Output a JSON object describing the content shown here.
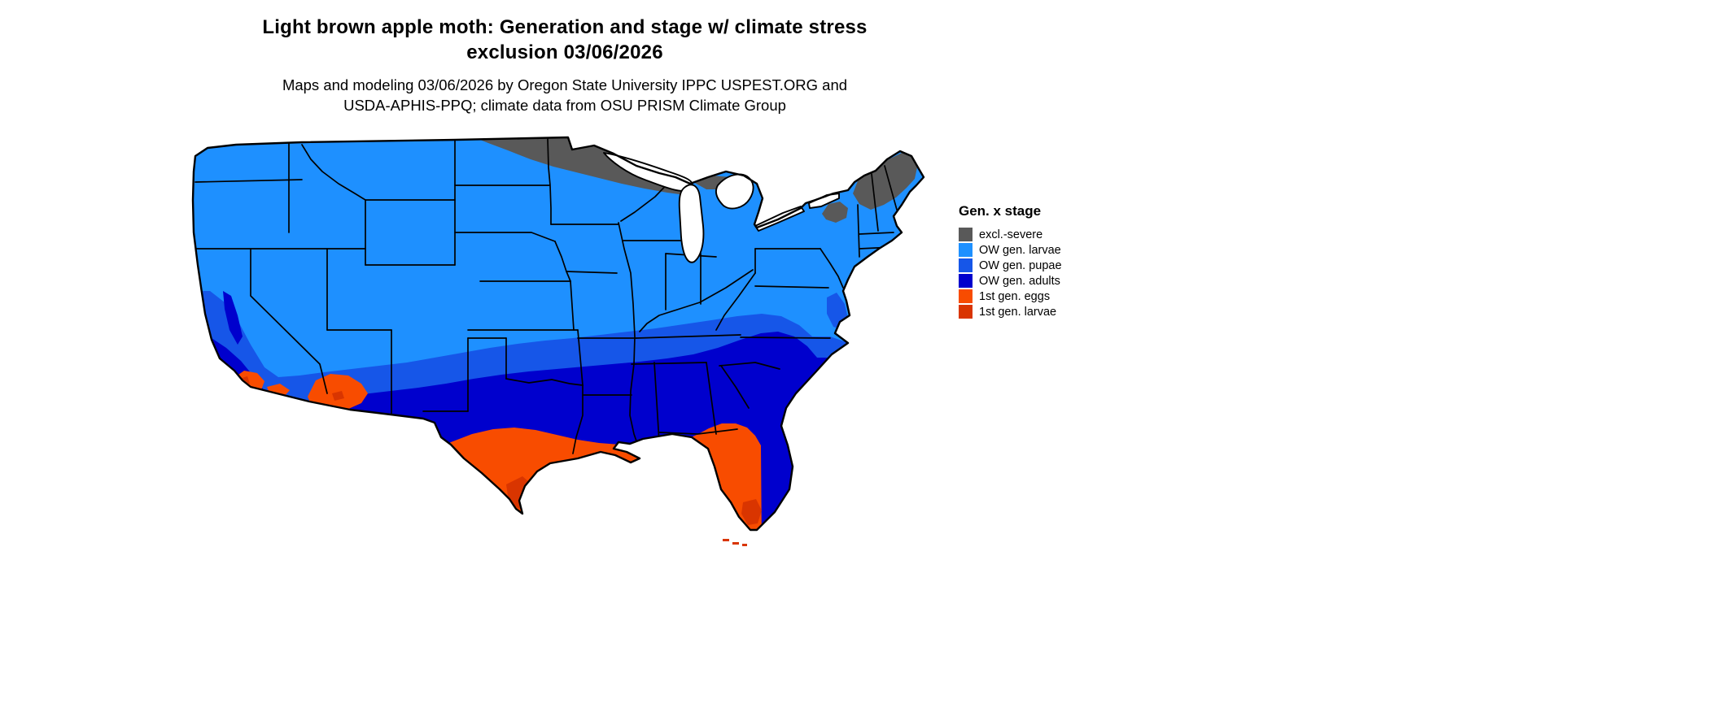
{
  "title": {
    "line1": "Light brown apple moth: Generation and stage w/ climate stress",
    "line2": "exclusion 03/06/2026"
  },
  "subtitle": {
    "line1": "Maps and modeling 03/06/2026 by Oregon State University IPPC USPEST.ORG and",
    "line2": "USDA-APHIS-PPQ; climate data from OSU PRISM Climate Group"
  },
  "legend": {
    "title": "Gen. x stage",
    "items": [
      {
        "label": "excl.-severe",
        "color": "#595959"
      },
      {
        "label": "OW gen. larvae",
        "color": "#1E90FF"
      },
      {
        "label": "OW gen. pupae",
        "color": "#1656E8"
      },
      {
        "label": "OW gen. adults",
        "color": "#0000CD"
      },
      {
        "label": "1st gen. eggs",
        "color": "#F84C00"
      },
      {
        "label": "1st gen. larvae",
        "color": "#D93500"
      }
    ]
  },
  "map": {
    "outline_color": "#000000",
    "water_color": "#ffffff"
  }
}
